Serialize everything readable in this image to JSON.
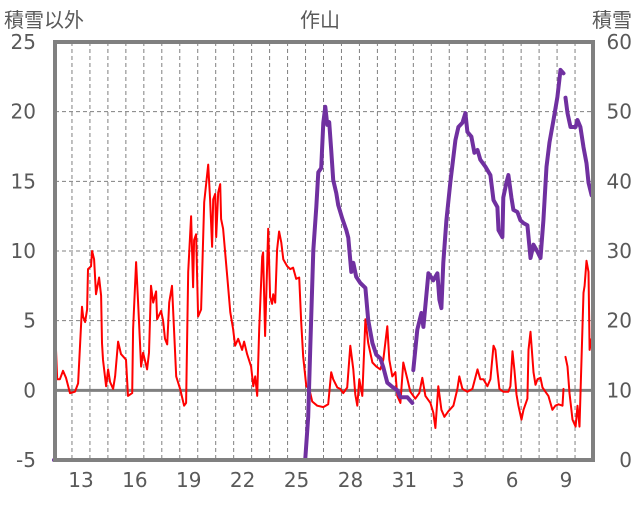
{
  "chart_data": {
    "type": "line",
    "title": "作山",
    "ylabel_left": "積雪以外",
    "ylabel_right": "積雪",
    "xlabel": "",
    "x_unit": "days since Jan 12 00:00",
    "xlim": [
      0,
      30
    ],
    "ylim_left": [
      -5,
      25
    ],
    "ylim_right": [
      0,
      60
    ],
    "yticks_left": [
      "-5",
      "0",
      "5",
      "10",
      "15",
      "20",
      "25"
    ],
    "yticks_right": [
      "0",
      "10",
      "20",
      "30",
      "40",
      "50",
      "60"
    ],
    "xtick_labels": [
      {
        "x": 1.5,
        "label": "13"
      },
      {
        "x": 4.5,
        "label": "16"
      },
      {
        "x": 7.5,
        "label": "19"
      },
      {
        "x": 10.5,
        "label": "22"
      },
      {
        "x": 13.5,
        "label": "25"
      },
      {
        "x": 16.5,
        "label": "28"
      },
      {
        "x": 19.5,
        "label": "31"
      },
      {
        "x": 22.5,
        "label": "3"
      },
      {
        "x": 25.5,
        "label": "6"
      },
      {
        "x": 28.5,
        "label": "9"
      }
    ],
    "grid": true,
    "colors": {
      "temperature": "#FF0000",
      "snow": "#7030A0",
      "axis": "#808080",
      "text": "#595959"
    },
    "series": [
      {
        "name": "積雪以外",
        "axis": "left",
        "color": "#FF0000",
        "points": [
          [
            0.0,
            6.2
          ],
          [
            0.11,
            2.9
          ],
          [
            0.18,
            0.8
          ],
          [
            0.33,
            0.8
          ],
          [
            0.5,
            1.4
          ],
          [
            0.67,
            0.9
          ],
          [
            0.89,
            -0.2
          ],
          [
            1.17,
            -0.1
          ],
          [
            1.34,
            0.5
          ],
          [
            1.56,
            6.0
          ],
          [
            1.62,
            5.3
          ],
          [
            1.73,
            4.9
          ],
          [
            1.84,
            5.8
          ],
          [
            1.89,
            8.7
          ],
          [
            2.06,
            8.9
          ],
          [
            2.12,
            10.0
          ],
          [
            2.23,
            9.4
          ],
          [
            2.34,
            6.9
          ],
          [
            2.51,
            8.1
          ],
          [
            2.62,
            6.8
          ],
          [
            2.67,
            3.4
          ],
          [
            2.73,
            2.2
          ],
          [
            2.9,
            0.3
          ],
          [
            3.01,
            1.5
          ],
          [
            3.12,
            0.6
          ],
          [
            3.29,
            0.1
          ],
          [
            3.4,
            1.0
          ],
          [
            3.57,
            3.5
          ],
          [
            3.73,
            2.6
          ],
          [
            4.01,
            2.2
          ],
          [
            4.12,
            -0.4
          ],
          [
            4.35,
            -0.2
          ],
          [
            4.4,
            4.4
          ],
          [
            4.57,
            9.2
          ],
          [
            4.68,
            6.3
          ],
          [
            4.85,
            1.7
          ],
          [
            4.96,
            2.7
          ],
          [
            5.18,
            1.5
          ],
          [
            5.29,
            2.7
          ],
          [
            5.4,
            7.5
          ],
          [
            5.52,
            6.3
          ],
          [
            5.68,
            7.1
          ],
          [
            5.74,
            5.1
          ],
          [
            5.96,
            5.7
          ],
          [
            6.07,
            5.0
          ],
          [
            6.18,
            3.7
          ],
          [
            6.3,
            3.3
          ],
          [
            6.41,
            6.3
          ],
          [
            6.57,
            7.5
          ],
          [
            6.8,
            1.0
          ],
          [
            7.02,
            0.1
          ],
          [
            7.24,
            -1.1
          ],
          [
            7.35,
            -0.9
          ],
          [
            7.47,
            8.5
          ],
          [
            7.63,
            12.5
          ],
          [
            7.74,
            7.4
          ],
          [
            7.8,
            10.8
          ],
          [
            7.91,
            11.2
          ],
          [
            8.02,
            5.3
          ],
          [
            8.19,
            5.8
          ],
          [
            8.36,
            13.5
          ],
          [
            8.58,
            16.2
          ],
          [
            8.69,
            13.7
          ],
          [
            8.8,
            10.3
          ],
          [
            8.86,
            13.7
          ],
          [
            8.97,
            14.1
          ],
          [
            9.03,
            11.0
          ],
          [
            9.14,
            14.2
          ],
          [
            9.25,
            14.8
          ],
          [
            9.3,
            12.3
          ],
          [
            9.41,
            11.6
          ],
          [
            9.64,
            8.2
          ],
          [
            9.81,
            5.6
          ],
          [
            9.97,
            4.4
          ],
          [
            10.08,
            3.2
          ],
          [
            10.25,
            3.7
          ],
          [
            10.47,
            2.9
          ],
          [
            10.58,
            3.5
          ],
          [
            10.75,
            2.6
          ],
          [
            10.97,
            1.7
          ],
          [
            11.09,
            0.3
          ],
          [
            11.2,
            1.0
          ],
          [
            11.31,
            -0.4
          ],
          [
            11.42,
            4.4
          ],
          [
            11.59,
            9.6
          ],
          [
            11.64,
            9.9
          ],
          [
            11.75,
            3.9
          ],
          [
            11.92,
            11.6
          ],
          [
            12.03,
            6.7
          ],
          [
            12.14,
            6.2
          ],
          [
            12.2,
            6.9
          ],
          [
            12.31,
            6.3
          ],
          [
            12.42,
            10.1
          ],
          [
            12.53,
            11.4
          ],
          [
            12.65,
            10.6
          ],
          [
            12.76,
            9.4
          ],
          [
            12.98,
            8.9
          ],
          [
            13.15,
            8.7
          ],
          [
            13.31,
            8.8
          ],
          [
            13.48,
            8.0
          ],
          [
            13.65,
            8.1
          ],
          [
            13.76,
            4.9
          ],
          [
            13.87,
            2.4
          ],
          [
            14.04,
            0.3
          ],
          [
            14.21,
            0.1
          ],
          [
            14.37,
            -0.8
          ],
          [
            14.65,
            -1.1
          ],
          [
            14.99,
            -1.2
          ],
          [
            15.26,
            -1.0
          ],
          [
            15.43,
            1.3
          ],
          [
            15.54,
            0.8
          ],
          [
            15.77,
            0.2
          ],
          [
            15.93,
            0.1
          ],
          [
            16.1,
            -0.2
          ],
          [
            16.32,
            0.2
          ],
          [
            16.49,
            3.2
          ],
          [
            16.66,
            1.5
          ],
          [
            16.77,
            -0.3
          ],
          [
            16.88,
            -1.1
          ],
          [
            16.99,
            0.8
          ],
          [
            17.16,
            -0.4
          ],
          [
            17.33,
            5.1
          ],
          [
            17.49,
            3.4
          ],
          [
            17.72,
            2.0
          ],
          [
            17.94,
            1.7
          ],
          [
            18.16,
            1.5
          ],
          [
            18.33,
            2.2
          ],
          [
            18.55,
            4.6
          ],
          [
            18.66,
            2.2
          ],
          [
            18.83,
            1.0
          ],
          [
            19.0,
            1.3
          ],
          [
            19.11,
            -0.4
          ],
          [
            19.28,
            -0.9
          ],
          [
            19.44,
            2.0
          ],
          [
            19.67,
            0.8
          ],
          [
            19.83,
            -0.1
          ],
          [
            20.11,
            -0.6
          ],
          [
            20.33,
            -0.2
          ],
          [
            20.5,
            0.9
          ],
          [
            20.67,
            -0.4
          ],
          [
            20.95,
            -0.9
          ],
          [
            21.11,
            -1.6
          ],
          [
            21.23,
            -2.7
          ],
          [
            21.39,
            0.3
          ],
          [
            21.56,
            -1.4
          ],
          [
            21.73,
            -1.9
          ],
          [
            21.95,
            -1.5
          ],
          [
            22.23,
            -1.1
          ],
          [
            22.45,
            0.1
          ],
          [
            22.56,
            1.0
          ],
          [
            22.73,
            0.1
          ],
          [
            23.01,
            -0.1
          ],
          [
            23.29,
            0.1
          ],
          [
            23.57,
            1.5
          ],
          [
            23.73,
            0.8
          ],
          [
            23.9,
            0.8
          ],
          [
            24.12,
            0.3
          ],
          [
            24.29,
            0.8
          ],
          [
            24.46,
            3.2
          ],
          [
            24.57,
            2.9
          ],
          [
            24.68,
            1.4
          ],
          [
            24.79,
            0.1
          ],
          [
            25.01,
            -0.1
          ],
          [
            25.29,
            -0.1
          ],
          [
            25.4,
            0.3
          ],
          [
            25.52,
            2.8
          ],
          [
            25.63,
            1.4
          ],
          [
            25.74,
            -0.3
          ],
          [
            25.85,
            -1.1
          ],
          [
            26.02,
            -2.1
          ],
          [
            26.13,
            -1.4
          ],
          [
            26.35,
            -0.6
          ],
          [
            26.41,
            2.9
          ],
          [
            26.52,
            4.2
          ],
          [
            26.69,
            1.3
          ],
          [
            26.8,
            0.4
          ],
          [
            26.91,
            0.8
          ],
          [
            27.08,
            0.9
          ],
          [
            27.19,
            0.2
          ],
          [
            27.35,
            -0.1
          ],
          [
            27.52,
            -0.4
          ],
          [
            27.74,
            -1.4
          ],
          [
            27.91,
            -1.1
          ],
          [
            28.08,
            -1.0
          ],
          [
            28.3,
            -1.1
          ],
          [
            28.36,
            0.1
          ],
          null,
          [
            28.47,
            2.4
          ],
          [
            28.58,
            1.7
          ],
          [
            28.69,
            -0.2
          ],
          [
            28.86,
            -2.1
          ],
          [
            29.03,
            -2.6
          ],
          [
            29.14,
            -1.1
          ],
          [
            29.25,
            -2.6
          ],
          [
            29.36,
            2.2
          ],
          [
            29.47,
            7.0
          ],
          [
            29.53,
            7.5
          ],
          [
            29.64,
            9.3
          ],
          [
            29.75,
            8.5
          ],
          [
            29.81,
            2.9
          ],
          [
            29.92,
            3.7
          ]
        ]
      },
      {
        "name": "積雪",
        "axis": "right",
        "color": "#7030A0",
        "points": [
          [
            0.0,
            0
          ],
          [
            13.98,
            0
          ],
          [
            14.15,
            6.2
          ],
          [
            14.26,
            15.8
          ],
          [
            14.43,
            30.1
          ],
          [
            14.6,
            36.3
          ],
          [
            14.71,
            41.3
          ],
          [
            14.87,
            41.9
          ],
          [
            14.99,
            48.4
          ],
          [
            15.1,
            50.7
          ],
          [
            15.21,
            48.1
          ],
          [
            15.32,
            48.5
          ],
          [
            15.43,
            44.5
          ],
          [
            15.54,
            40.2
          ],
          [
            15.71,
            38.3
          ],
          [
            15.82,
            36.6
          ],
          [
            16.04,
            34.7
          ],
          [
            16.27,
            33.0
          ],
          [
            16.38,
            31.9
          ],
          [
            16.55,
            27.0
          ],
          [
            16.66,
            28.3
          ],
          [
            16.82,
            26.3
          ],
          [
            17.05,
            25.4
          ],
          [
            17.33,
            24.7
          ],
          [
            17.49,
            20.1
          ],
          [
            17.72,
            16.8
          ],
          [
            17.94,
            15.1
          ],
          [
            18.16,
            14.6
          ],
          [
            18.33,
            13.3
          ],
          [
            18.55,
            11.1
          ],
          [
            18.83,
            10.5
          ],
          [
            19.11,
            10.0
          ],
          [
            19.28,
            9.0
          ],
          [
            19.67,
            9.0
          ],
          [
            19.94,
            8.2
          ],
          null,
          [
            20.0,
            12.9
          ],
          [
            20.22,
            18.7
          ],
          [
            20.45,
            21.1
          ],
          [
            20.56,
            19.1
          ],
          [
            20.84,
            26.8
          ],
          [
            21.11,
            25.8
          ],
          [
            21.34,
            26.8
          ],
          [
            21.45,
            23.0
          ],
          [
            21.56,
            21.8
          ],
          [
            21.67,
            28.3
          ],
          [
            21.84,
            34.4
          ],
          [
            22.06,
            39.8
          ],
          [
            22.34,
            45.9
          ],
          [
            22.51,
            47.8
          ],
          [
            22.73,
            48.4
          ],
          [
            22.9,
            49.8
          ],
          [
            23.01,
            47.1
          ],
          [
            23.23,
            46.4
          ],
          [
            23.4,
            44.1
          ],
          [
            23.57,
            44.5
          ],
          [
            23.73,
            43.1
          ],
          [
            24.01,
            42.1
          ],
          [
            24.29,
            40.9
          ],
          [
            24.46,
            37.3
          ],
          [
            24.68,
            36.3
          ],
          [
            24.74,
            33.0
          ],
          [
            24.96,
            32.0
          ],
          [
            25.01,
            37.7
          ],
          [
            25.18,
            39.8
          ],
          [
            25.29,
            40.9
          ],
          [
            25.46,
            37.7
          ],
          [
            25.57,
            35.9
          ],
          [
            25.79,
            35.6
          ],
          [
            25.96,
            34.4
          ],
          [
            26.13,
            34.0
          ],
          [
            26.35,
            33.7
          ],
          [
            26.52,
            29.0
          ],
          [
            26.69,
            30.9
          ],
          [
            26.91,
            29.9
          ],
          [
            27.08,
            29.0
          ],
          [
            27.24,
            34.4
          ],
          [
            27.41,
            42.1
          ],
          [
            27.58,
            45.6
          ],
          [
            27.8,
            48.8
          ],
          [
            28.02,
            52.1
          ],
          [
            28.19,
            56.0
          ],
          [
            28.36,
            55.5
          ],
          null,
          [
            28.47,
            52.0
          ],
          [
            28.58,
            49.8
          ],
          [
            28.75,
            47.8
          ],
          [
            29.03,
            47.8
          ],
          [
            29.14,
            48.8
          ],
          [
            29.3,
            47.8
          ],
          [
            29.47,
            44.9
          ],
          [
            29.64,
            42.6
          ],
          [
            29.75,
            39.8
          ],
          [
            29.92,
            38.0
          ]
        ]
      }
    ]
  }
}
